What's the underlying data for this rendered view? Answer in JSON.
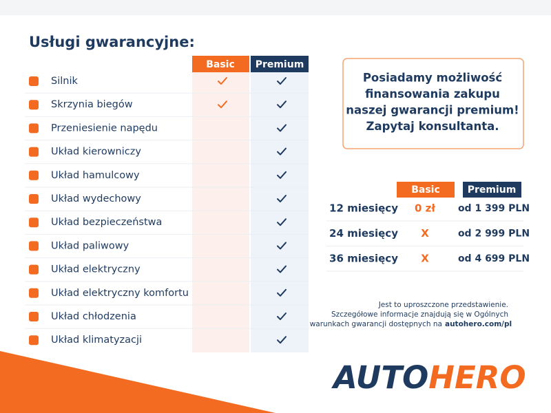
{
  "header": {
    "title": "Usługi gwarancyjne:"
  },
  "table": {
    "columns": [
      "Basic",
      "Premium"
    ],
    "rows": [
      {
        "label": "Silnik",
        "basic": true,
        "premium": true
      },
      {
        "label": "Skrzynia biegów",
        "basic": true,
        "premium": true
      },
      {
        "label": "Przeniesienie napędu",
        "basic": false,
        "premium": true
      },
      {
        "label": "Układ kierowniczy",
        "basic": false,
        "premium": true
      },
      {
        "label": "Układ hamulcowy",
        "basic": false,
        "premium": true
      },
      {
        "label": "Układ wydechowy",
        "basic": false,
        "premium": true
      },
      {
        "label": "Układ bezpieczeństwa",
        "basic": false,
        "premium": true
      },
      {
        "label": "Układ paliwowy",
        "basic": false,
        "premium": true
      },
      {
        "label": "Układ elektryczny",
        "basic": false,
        "premium": true
      },
      {
        "label": "Układ elektryczny komfortu",
        "basic": false,
        "premium": true
      },
      {
        "label": "Układ chłodzenia",
        "basic": false,
        "premium": true
      },
      {
        "label": "Układ klimatyzacji",
        "basic": false,
        "premium": true
      }
    ]
  },
  "promo": {
    "lines": [
      "Posiadamy możliwość",
      "finansowania zakupu",
      "naszej gwarancji premium!",
      "Zapytaj konsultanta."
    ]
  },
  "prices": {
    "columns": [
      "Basic",
      "Premium"
    ],
    "rows": [
      {
        "period": "12 miesięcy",
        "basic": "0 zł",
        "premium": "od 1 399 PLN"
      },
      {
        "period": "24 miesięcy",
        "basic": "X",
        "premium": "od 2 999 PLN"
      },
      {
        "period": "36 miesięcy",
        "basic": "X",
        "premium": "od 4 699 PLN"
      }
    ]
  },
  "note": {
    "lines": [
      "Jest to uproszczone przedstawienie.",
      "Szczegółowe informacje znajdują się w Ogólnych",
      "warunkach gwarancji dostępnych na"
    ],
    "link": "autohero.com/pl"
  },
  "logo": {
    "parts": [
      "AUTO",
      "HERO"
    ]
  }
}
